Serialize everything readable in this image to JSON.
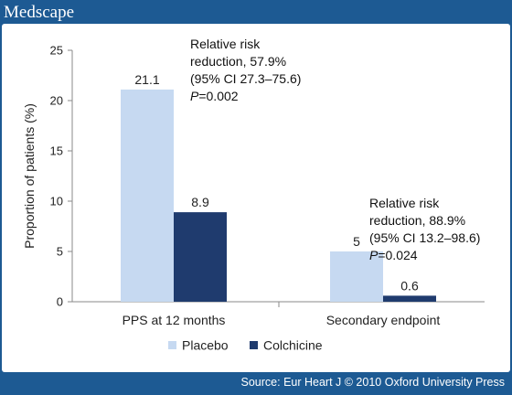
{
  "brand": "Medscape",
  "source": "Source: Eur Heart J © 2010 Oxford University Press",
  "colors": {
    "frame": "#1d5a93",
    "placebo": "#c6d9f1",
    "colchicine": "#1f3b6e"
  },
  "chart_data": {
    "type": "bar",
    "title": "",
    "xlabel": "",
    "ylabel": "Proportion of patients (%)",
    "ylim": [
      0,
      25
    ],
    "yticks": [
      "0",
      "5",
      "10",
      "15",
      "20",
      "25"
    ],
    "categories": [
      "PPS at 12 months",
      "Secondary endpoint"
    ],
    "series": [
      {
        "name": "Placebo",
        "values": [
          21.1,
          5
        ],
        "labels": [
          "21.1",
          "5"
        ]
      },
      {
        "name": "Colchicine",
        "values": [
          8.9,
          0.6
        ],
        "labels": [
          "8.9",
          "0.6"
        ]
      }
    ],
    "grid": false,
    "legend_position": "bottom",
    "annotations": [
      {
        "lines": [
          "Relative risk",
          "reduction, 57.9%",
          "(95% CI 27.3–75.6)"
        ],
        "p_label": "P",
        "p_value": "=0.002"
      },
      {
        "lines": [
          "Relative risk",
          "reduction, 88.9%",
          "(95% CI 13.2–98.6)"
        ],
        "p_label": "P",
        "p_value": "=0.024"
      }
    ]
  }
}
